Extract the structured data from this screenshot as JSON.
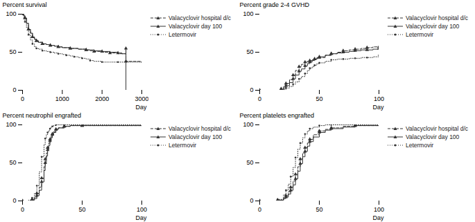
{
  "chart_data": [
    {
      "type": "step",
      "xlabel": "Day",
      "ylabel": "Percent survival",
      "xlim": [
        0,
        3000
      ],
      "ylim": [
        0,
        100
      ],
      "xticks": [
        0,
        1000,
        2000,
        3000
      ],
      "yticks": [
        0,
        50,
        100
      ],
      "grid": false,
      "legend": "upper right",
      "series": [
        {
          "name": "Valacyclovir hospital d/c",
          "color": "#333333",
          "line_style": "dashed",
          "marker": "triangle",
          "x": [
            0,
            30,
            60,
            100,
            150,
            200,
            250,
            300,
            350,
            400,
            500,
            600,
            700,
            800,
            900,
            1000,
            1200,
            1400,
            1600,
            1700,
            1800,
            2000,
            2200,
            2400,
            2600,
            3000
          ],
          "values": [
            100,
            98,
            95,
            88,
            80,
            75,
            70,
            67,
            65,
            63,
            61,
            60,
            59,
            58,
            57,
            56,
            55,
            54,
            53,
            52,
            51,
            50,
            49,
            48,
            38,
            38
          ]
        },
        {
          "name": "Valacyclovir day 100",
          "color": "#333333",
          "line_style": "solid",
          "marker": "triangle",
          "x": [
            0,
            30,
            60,
            100,
            150,
            200,
            250,
            300,
            350,
            400,
            500,
            600,
            700,
            800,
            900,
            1000,
            1200,
            1400,
            1600,
            1800,
            2000,
            2200,
            2400,
            2500,
            2600,
            2601
          ],
          "values": [
            100,
            98,
            95,
            88,
            80,
            75,
            70,
            67,
            65,
            63,
            61,
            60,
            59,
            58,
            57,
            56,
            55,
            54,
            53,
            52,
            51,
            50,
            49,
            48,
            55,
            0
          ]
        },
        {
          "name": "Letermovir",
          "color": "#333333",
          "line_style": "dotted",
          "marker": "point",
          "x": [
            0,
            30,
            60,
            100,
            150,
            200,
            250,
            300,
            350,
            400,
            500,
            600,
            700,
            800,
            900,
            1000,
            1100,
            1200,
            1300,
            1400,
            1500,
            1600,
            1700,
            1800,
            2000,
            2200,
            2400,
            2600,
            3000
          ],
          "values": [
            100,
            96,
            90,
            82,
            73,
            66,
            61,
            57,
            55,
            54,
            52,
            51,
            50,
            49,
            48,
            47,
            46,
            45,
            44,
            43,
            42,
            41,
            39,
            38,
            37,
            37,
            37,
            37,
            37
          ]
        }
      ]
    },
    {
      "type": "step",
      "xlabel": "Day",
      "ylabel": "Percent grade 2-4 GVHD",
      "xlim": [
        0,
        100
      ],
      "ylim": [
        0,
        100
      ],
      "xticks": [
        0,
        50,
        100
      ],
      "yticks": [
        0,
        50,
        100
      ],
      "grid": false,
      "legend": "upper right",
      "series": [
        {
          "name": "Valacyclovir hospital d/c",
          "color": "#333333",
          "line_style": "dashed",
          "marker": "triangle",
          "x": [
            0,
            15,
            18,
            20,
            22,
            25,
            28,
            30,
            33,
            35,
            38,
            40,
            42,
            44,
            46,
            48,
            50,
            55,
            60,
            65,
            70,
            75,
            80,
            85,
            90,
            95,
            100
          ],
          "values": [
            0,
            0,
            2,
            5,
            9,
            14,
            20,
            26,
            31,
            34,
            37,
            38,
            39,
            40,
            41,
            42,
            43,
            46,
            48,
            50,
            52,
            53,
            54,
            55,
            56,
            57,
            57
          ]
        },
        {
          "name": "Valacyclovir day 100",
          "color": "#333333",
          "line_style": "solid",
          "marker": "triangle",
          "x": [
            0,
            15,
            18,
            20,
            22,
            25,
            28,
            30,
            33,
            35,
            38,
            40,
            42,
            44,
            46,
            48,
            50,
            55,
            60,
            65,
            70,
            75,
            80,
            85,
            90,
            95,
            100
          ],
          "values": [
            0,
            0,
            1,
            3,
            6,
            10,
            15,
            20,
            25,
            28,
            32,
            35,
            37,
            39,
            41,
            43,
            44,
            46,
            48,
            49,
            50,
            51,
            52,
            53,
            53,
            54,
            55
          ]
        },
        {
          "name": "Letermovir",
          "color": "#333333",
          "line_style": "dotted",
          "marker": "point",
          "x": [
            0,
            15,
            18,
            20,
            22,
            25,
            28,
            30,
            33,
            35,
            38,
            40,
            42,
            44,
            46,
            48,
            50,
            55,
            60,
            65,
            70,
            75,
            80,
            85,
            90,
            95,
            100
          ],
          "values": [
            0,
            0,
            0,
            1,
            3,
            5,
            8,
            11,
            15,
            18,
            22,
            26,
            29,
            31,
            33,
            35,
            36,
            38,
            40,
            41,
            41,
            42,
            42,
            43,
            43,
            44,
            46
          ]
        }
      ]
    },
    {
      "type": "step",
      "xlabel": "Day",
      "ylabel": "Percent neutrophil engrafted",
      "xlim": [
        0,
        100
      ],
      "ylim": [
        0,
        100
      ],
      "xticks": [
        0,
        50,
        100
      ],
      "yticks": [
        0,
        50,
        100
      ],
      "grid": false,
      "legend": "upper right",
      "series": [
        {
          "name": "Valacyclovir hospital d/c",
          "color": "#333333",
          "line_style": "dashed",
          "marker": "triangle",
          "x": [
            0,
            5,
            8,
            10,
            12,
            14,
            16,
            18,
            19,
            20,
            21,
            22,
            23,
            24,
            25,
            26,
            28,
            30,
            35,
            40,
            50,
            100
          ],
          "values": [
            0,
            0,
            2,
            5,
            10,
            18,
            30,
            45,
            55,
            63,
            70,
            76,
            81,
            85,
            88,
            91,
            94,
            96,
            98,
            99,
            99,
            99
          ]
        },
        {
          "name": "Valacyclovir day 100",
          "color": "#333333",
          "line_style": "solid",
          "marker": "triangle",
          "x": [
            0,
            5,
            8,
            10,
            12,
            14,
            16,
            18,
            19,
            20,
            21,
            22,
            23,
            24,
            25,
            26,
            28,
            30,
            35,
            40,
            50,
            100
          ],
          "values": [
            0,
            0,
            1,
            3,
            7,
            14,
            25,
            40,
            50,
            59,
            67,
            73,
            79,
            83,
            87,
            90,
            94,
            96,
            98,
            99,
            99,
            99
          ]
        },
        {
          "name": "Letermovir",
          "color": "#333333",
          "line_style": "dotted",
          "marker": "point",
          "x": [
            0,
            5,
            8,
            10,
            12,
            14,
            16,
            18,
            19,
            20,
            21,
            22,
            23,
            24,
            25,
            26,
            28,
            30,
            35,
            40,
            50,
            100
          ],
          "values": [
            0,
            1,
            4,
            10,
            20,
            38,
            58,
            74,
            82,
            87,
            90,
            93,
            95,
            97,
            98,
            99,
            100,
            100,
            100,
            100,
            100,
            100
          ]
        }
      ]
    },
    {
      "type": "step",
      "xlabel": "Day",
      "ylabel": "Percent platelets engrafted",
      "xlim": [
        0,
        100
      ],
      "ylim": [
        0,
        100
      ],
      "xticks": [
        0,
        50,
        100
      ],
      "yticks": [
        0,
        50,
        100
      ],
      "grid": false,
      "legend": "upper right",
      "series": [
        {
          "name": "Valacyclovir hospital d/c",
          "color": "#333333",
          "line_style": "dashed",
          "marker": "triangle",
          "x": [
            0,
            10,
            15,
            20,
            22,
            24,
            26,
            28,
            30,
            32,
            34,
            36,
            38,
            40,
            42,
            45,
            50,
            55,
            60,
            70,
            80,
            100
          ],
          "values": [
            0,
            0,
            1,
            4,
            7,
            12,
            18,
            26,
            35,
            45,
            55,
            63,
            70,
            76,
            81,
            87,
            92,
            94,
            96,
            98,
            99,
            99
          ]
        },
        {
          "name": "Valacyclovir day 100",
          "color": "#333333",
          "line_style": "solid",
          "marker": "triangle",
          "x": [
            0,
            10,
            15,
            20,
            22,
            24,
            26,
            28,
            30,
            32,
            34,
            36,
            38,
            40,
            42,
            45,
            50,
            55,
            60,
            70,
            80,
            100
          ],
          "values": [
            0,
            0,
            1,
            3,
            5,
            9,
            14,
            21,
            29,
            39,
            49,
            58,
            65,
            72,
            78,
            84,
            90,
            93,
            95,
            97,
            99,
            99
          ]
        },
        {
          "name": "Letermovir",
          "color": "#333333",
          "line_style": "dotted",
          "marker": "point",
          "x": [
            0,
            10,
            15,
            20,
            22,
            24,
            26,
            28,
            30,
            32,
            34,
            36,
            38,
            40,
            42,
            45,
            50,
            55,
            60,
            70,
            80,
            100
          ],
          "values": [
            0,
            0,
            2,
            8,
            14,
            22,
            32,
            44,
            57,
            68,
            76,
            83,
            88,
            92,
            95,
            97,
            99,
            100,
            100,
            100,
            100,
            100
          ]
        }
      ]
    }
  ]
}
